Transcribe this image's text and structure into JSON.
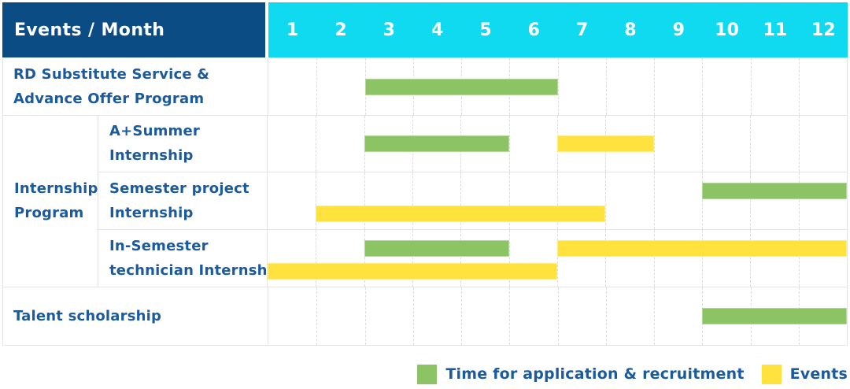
{
  "header": {
    "title": "Events / Month",
    "months": [
      "1",
      "2",
      "3",
      "4",
      "5",
      "6",
      "7",
      "8",
      "9",
      "10",
      "11",
      "12"
    ]
  },
  "colors": {
    "header_bg": "#0c4c85",
    "months_bg": "#10daef",
    "label_text": "#1b5a9d",
    "grid_line": "#e4e4e4",
    "application_green": "#8bc365",
    "event_yellow": "#ffe23d"
  },
  "legend": [
    {
      "key": "application",
      "label": "Time for application & recruitment",
      "color": "#8bc365"
    },
    {
      "key": "events",
      "label": "Events",
      "color": "#ffe23d"
    }
  ],
  "groups": {
    "Internship Program": {
      "label_lines": [
        "Internship",
        "Program"
      ]
    }
  },
  "chart_data": {
    "type": "bar",
    "variant": "gantt",
    "title": "Events / Month",
    "x_axis": {
      "label": "Month",
      "ticks": [
        1,
        2,
        3,
        4,
        5,
        6,
        7,
        8,
        9,
        10,
        11,
        12
      ],
      "range": [
        1,
        12
      ]
    },
    "grid": "dashed-monthly",
    "legend_position": "bottom-right",
    "series_legend": [
      "Time for application & recruitment",
      "Events"
    ],
    "rows": [
      {
        "group": null,
        "category": "RD Substitute Service & Advance Offer Program",
        "label_lines": [
          "RD Substitute Service &",
          "Advance Offer Program"
        ],
        "bars": [
          {
            "series": "application",
            "start_month": 3,
            "end_month": 6,
            "lane": "center"
          }
        ]
      },
      {
        "group": "Internship Program",
        "category": "A+Summer Internship",
        "label_lines": [
          "A+Summer",
          "Internship"
        ],
        "bars": [
          {
            "series": "application",
            "start_month": 3,
            "end_month": 5,
            "lane": "center"
          },
          {
            "series": "events",
            "start_month": 7,
            "end_month": 8,
            "lane": "center"
          }
        ]
      },
      {
        "group": "Internship Program",
        "category": "Semester project Internship",
        "label_lines": [
          "Semester project",
          "Internship"
        ],
        "bars": [
          {
            "series": "application",
            "start_month": 10,
            "end_month": 12,
            "lane": "top"
          },
          {
            "series": "events",
            "start_month": 2,
            "end_month": 7,
            "lane": "bottom"
          }
        ]
      },
      {
        "group": "Internship Program",
        "category": "In-Semester technician Internship",
        "label_lines": [
          "In-Semester",
          "technician Internship"
        ],
        "bars": [
          {
            "series": "application",
            "start_month": 3,
            "end_month": 5,
            "lane": "top"
          },
          {
            "series": "events",
            "start_month": 7,
            "end_month": 12,
            "lane": "top"
          },
          {
            "series": "events",
            "start_month": 1,
            "end_month": 6,
            "lane": "bottom"
          }
        ]
      },
      {
        "group": null,
        "category": "Talent scholarship",
        "label_lines": [
          "Talent scholarship"
        ],
        "bars": [
          {
            "series": "application",
            "start_month": 10,
            "end_month": 12,
            "lane": "center"
          }
        ]
      }
    ]
  }
}
